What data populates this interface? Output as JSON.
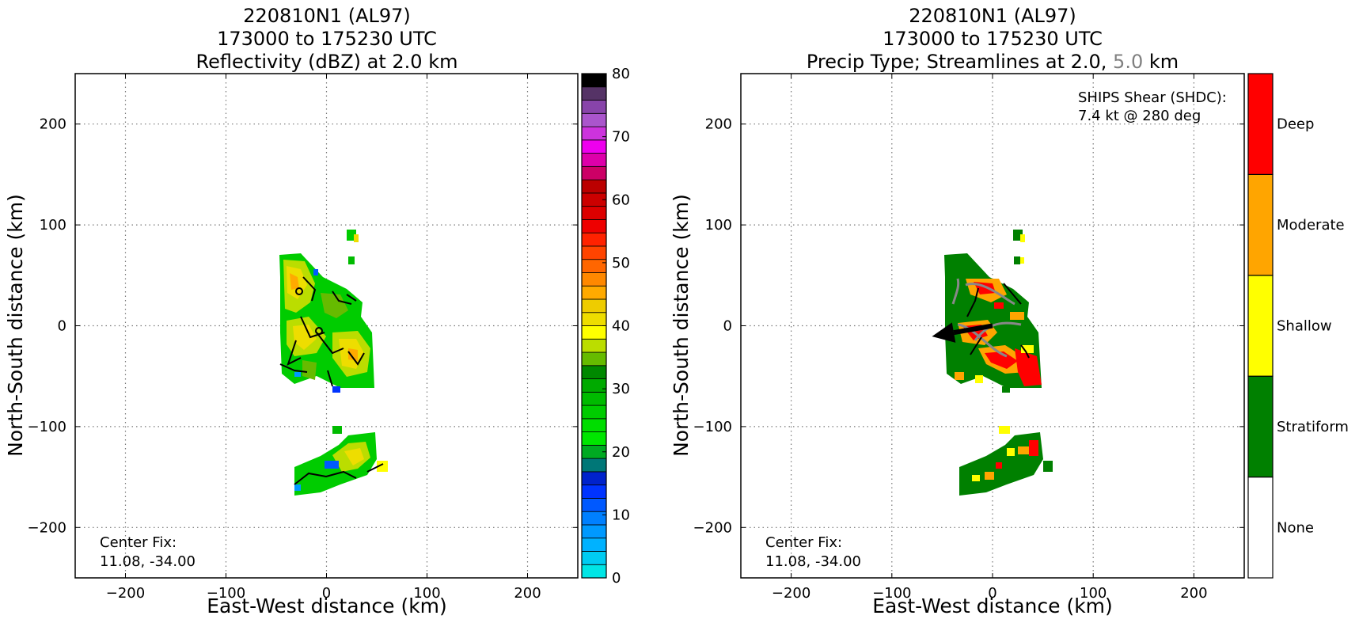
{
  "chart_data": [
    {
      "type": "heatmap",
      "title_lines": [
        "220810N1 (AL97)",
        "173000 to 175230 UTC",
        "Reflectivity (dBZ) at 2.0 km"
      ],
      "xlabel": "East-West distance (km)",
      "ylabel": "North-South distance (km)",
      "xlim": [
        -250,
        250
      ],
      "ylim": [
        -250,
        250
      ],
      "xticks": [
        -200,
        -100,
        0,
        100,
        200
      ],
      "yticks": [
        -200,
        -100,
        0,
        100,
        200
      ],
      "xtick_labels": [
        "−200",
        "−100",
        "0",
        "100",
        "200"
      ],
      "ytick_labels": [
        "−200",
        "−100",
        "0",
        "100",
        "200"
      ],
      "grid": true,
      "annotation": [
        "Center Fix:",
        "11.08, -34.00"
      ],
      "colorbar": {
        "min": 0,
        "max": 80,
        "step": 2.5,
        "ticks": [
          0,
          10,
          20,
          30,
          40,
          50,
          60,
          70,
          80
        ],
        "colors": [
          "#00e5e5",
          "#00ccf2",
          "#00b2ff",
          "#0099ff",
          "#0080ff",
          "#0059ff",
          "#0033ff",
          "#0022cc",
          "#007777",
          "#00aa22",
          "#00e600",
          "#00dd00",
          "#00cc00",
          "#00bb00",
          "#00aa00",
          "#008800",
          "#66bb00",
          "#bbdd00",
          "#ffff00",
          "#eedd00",
          "#eecc00",
          "#ffaa00",
          "#ff8800",
          "#ff6600",
          "#ff4400",
          "#ff2200",
          "#ee0000",
          "#dd0000",
          "#cc0000",
          "#bb0000",
          "#cc0066",
          "#dd00aa",
          "#ee00ee",
          "#cc33dd",
          "#aa55cc",
          "#8844aa",
          "#553366",
          "#000000"
        ]
      },
      "echo_regions": [
        {
          "name": "main-band",
          "x": [
            -47,
            48
          ],
          "y": [
            -62,
            68
          ]
        },
        {
          "name": "southern-cluster",
          "x": [
            -32,
            60
          ],
          "y": [
            -170,
            -108
          ]
        },
        {
          "name": "northern-cells",
          "x": [
            22,
            38
          ],
          "y": [
            55,
            95
          ]
        }
      ]
    },
    {
      "type": "heatmap",
      "title_lines": [
        "220810N1 (AL97)",
        "173000 to 175230 UTC",
        "Precip Type; Streamlines at 2.0,",
        "5.0",
        "km"
      ],
      "xlabel": "East-West distance (km)",
      "ylabel": "North-South distance (km)",
      "xlim": [
        -250,
        250
      ],
      "ylim": [
        -250,
        250
      ],
      "xticks": [
        -200,
        -100,
        0,
        100,
        200
      ],
      "yticks": [
        -200,
        -100,
        0,
        100,
        200
      ],
      "xtick_labels": [
        "−200",
        "−100",
        "0",
        "100",
        "200"
      ],
      "ytick_labels": [
        "−200",
        "−100",
        "0",
        "100",
        "200"
      ],
      "grid": true,
      "shear_text": [
        "SHIPS Shear (SHDC):",
        "7.4 kt @ 280 deg"
      ],
      "shear_vector": {
        "speed_kt": 7.4,
        "direction_deg": 280
      },
      "annotation": [
        "Center Fix:",
        "11.08, -34.00"
      ],
      "categories": [
        "None",
        "Stratiform",
        "Shallow",
        "Moderate",
        "Deep"
      ],
      "category_colors": [
        "#ffffff",
        "#008000",
        "#ffff00",
        "#ffa500",
        "#ff0000"
      ]
    }
  ]
}
